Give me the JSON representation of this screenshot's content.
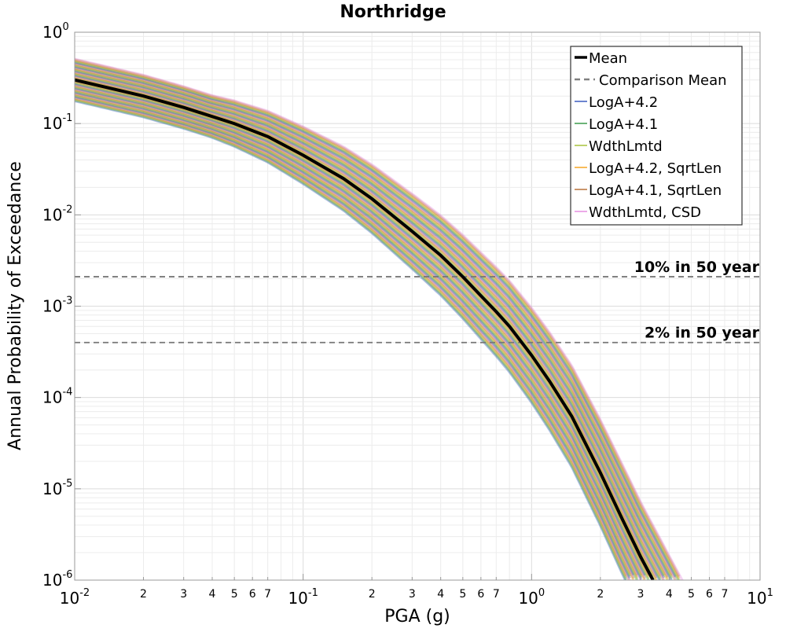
{
  "chart_data": {
    "type": "line",
    "title": "Northridge",
    "xlabel": "PGA (g)",
    "ylabel": "Annual Probability of Exceedance",
    "x_scale": "log",
    "y_scale": "log",
    "xlim": [
      0.01,
      10
    ],
    "ylim": [
      1e-06,
      1
    ],
    "grid": true,
    "legend_position": "top-right",
    "x_major_ticks": [
      {
        "value": 0.01,
        "base": "10",
        "exp": "-2"
      },
      {
        "value": 0.1,
        "base": "10",
        "exp": "-1"
      },
      {
        "value": 1,
        "base": "10",
        "exp": "0"
      },
      {
        "value": 10,
        "base": "10",
        "exp": "1"
      }
    ],
    "x_minor_ticks": [
      {
        "value": 0.02,
        "label": "2"
      },
      {
        "value": 0.03,
        "label": "3"
      },
      {
        "value": 0.04,
        "label": "4"
      },
      {
        "value": 0.05,
        "label": "5"
      },
      {
        "value": 0.06,
        "label": "6"
      },
      {
        "value": 0.07,
        "label": "7"
      },
      {
        "value": 0.2,
        "label": "2"
      },
      {
        "value": 0.3,
        "label": "3"
      },
      {
        "value": 0.4,
        "label": "4"
      },
      {
        "value": 0.5,
        "label": "5"
      },
      {
        "value": 0.6,
        "label": "6"
      },
      {
        "value": 0.7,
        "label": "7"
      },
      {
        "value": 2,
        "label": "2"
      },
      {
        "value": 3,
        "label": "3"
      },
      {
        "value": 4,
        "label": "4"
      },
      {
        "value": 5,
        "label": "5"
      },
      {
        "value": 6,
        "label": "6"
      },
      {
        "value": 7,
        "label": "7"
      }
    ],
    "y_major_ticks": [
      {
        "value": 1,
        "base": "10",
        "exp": "0"
      },
      {
        "value": 0.1,
        "base": "10",
        "exp": "-1"
      },
      {
        "value": 0.01,
        "base": "10",
        "exp": "-2"
      },
      {
        "value": 0.001,
        "base": "10",
        "exp": "-3"
      },
      {
        "value": 0.0001,
        "base": "10",
        "exp": "-4"
      },
      {
        "value": 1e-05,
        "base": "10",
        "exp": "-5"
      },
      {
        "value": 1e-06,
        "base": "10",
        "exp": "-6"
      }
    ],
    "mean_curve": {
      "x": [
        0.01,
        0.02,
        0.03,
        0.05,
        0.07,
        0.1,
        0.15,
        0.2,
        0.3,
        0.4,
        0.5,
        0.6,
        0.7,
        0.8,
        1.0,
        1.2,
        1.5,
        2.0,
        2.5,
        3.0,
        3.4
      ],
      "y": [
        0.3,
        0.2,
        0.15,
        0.1,
        0.072,
        0.045,
        0.025,
        0.015,
        0.0066,
        0.0036,
        0.0021,
        0.0013,
        0.00087,
        0.0006,
        0.00029,
        0.00015,
        6.2e-05,
        1.5e-05,
        4.6e-06,
        1.8e-06,
        1e-06
      ]
    },
    "series": [
      {
        "name": "Mean",
        "color": "#000000",
        "style": "solid"
      },
      {
        "name": "Comparison Mean",
        "color": "#808080",
        "style": "dashed"
      },
      {
        "name": "LogA+4.2",
        "color": "#3b5bbf",
        "style": "solid"
      },
      {
        "name": "LogA+4.1",
        "color": "#3a9a4a",
        "style": "solid"
      },
      {
        "name": "WdthLmtd",
        "color": "#a8c23a",
        "style": "solid"
      },
      {
        "name": "LogA+4.2, SqrtLen",
        "color": "#f5a623",
        "style": "solid"
      },
      {
        "name": "LogA+4.1, SqrtLen",
        "color": "#b8733a",
        "style": "solid"
      },
      {
        "name": "WdthLmtd, CSD",
        "color": "#e58ee0",
        "style": "solid"
      }
    ],
    "reference_lines": [
      {
        "label": "10% in 50 year",
        "y": 0.0021
      },
      {
        "label": "2% in 50 year",
        "y": 0.0004
      }
    ]
  }
}
